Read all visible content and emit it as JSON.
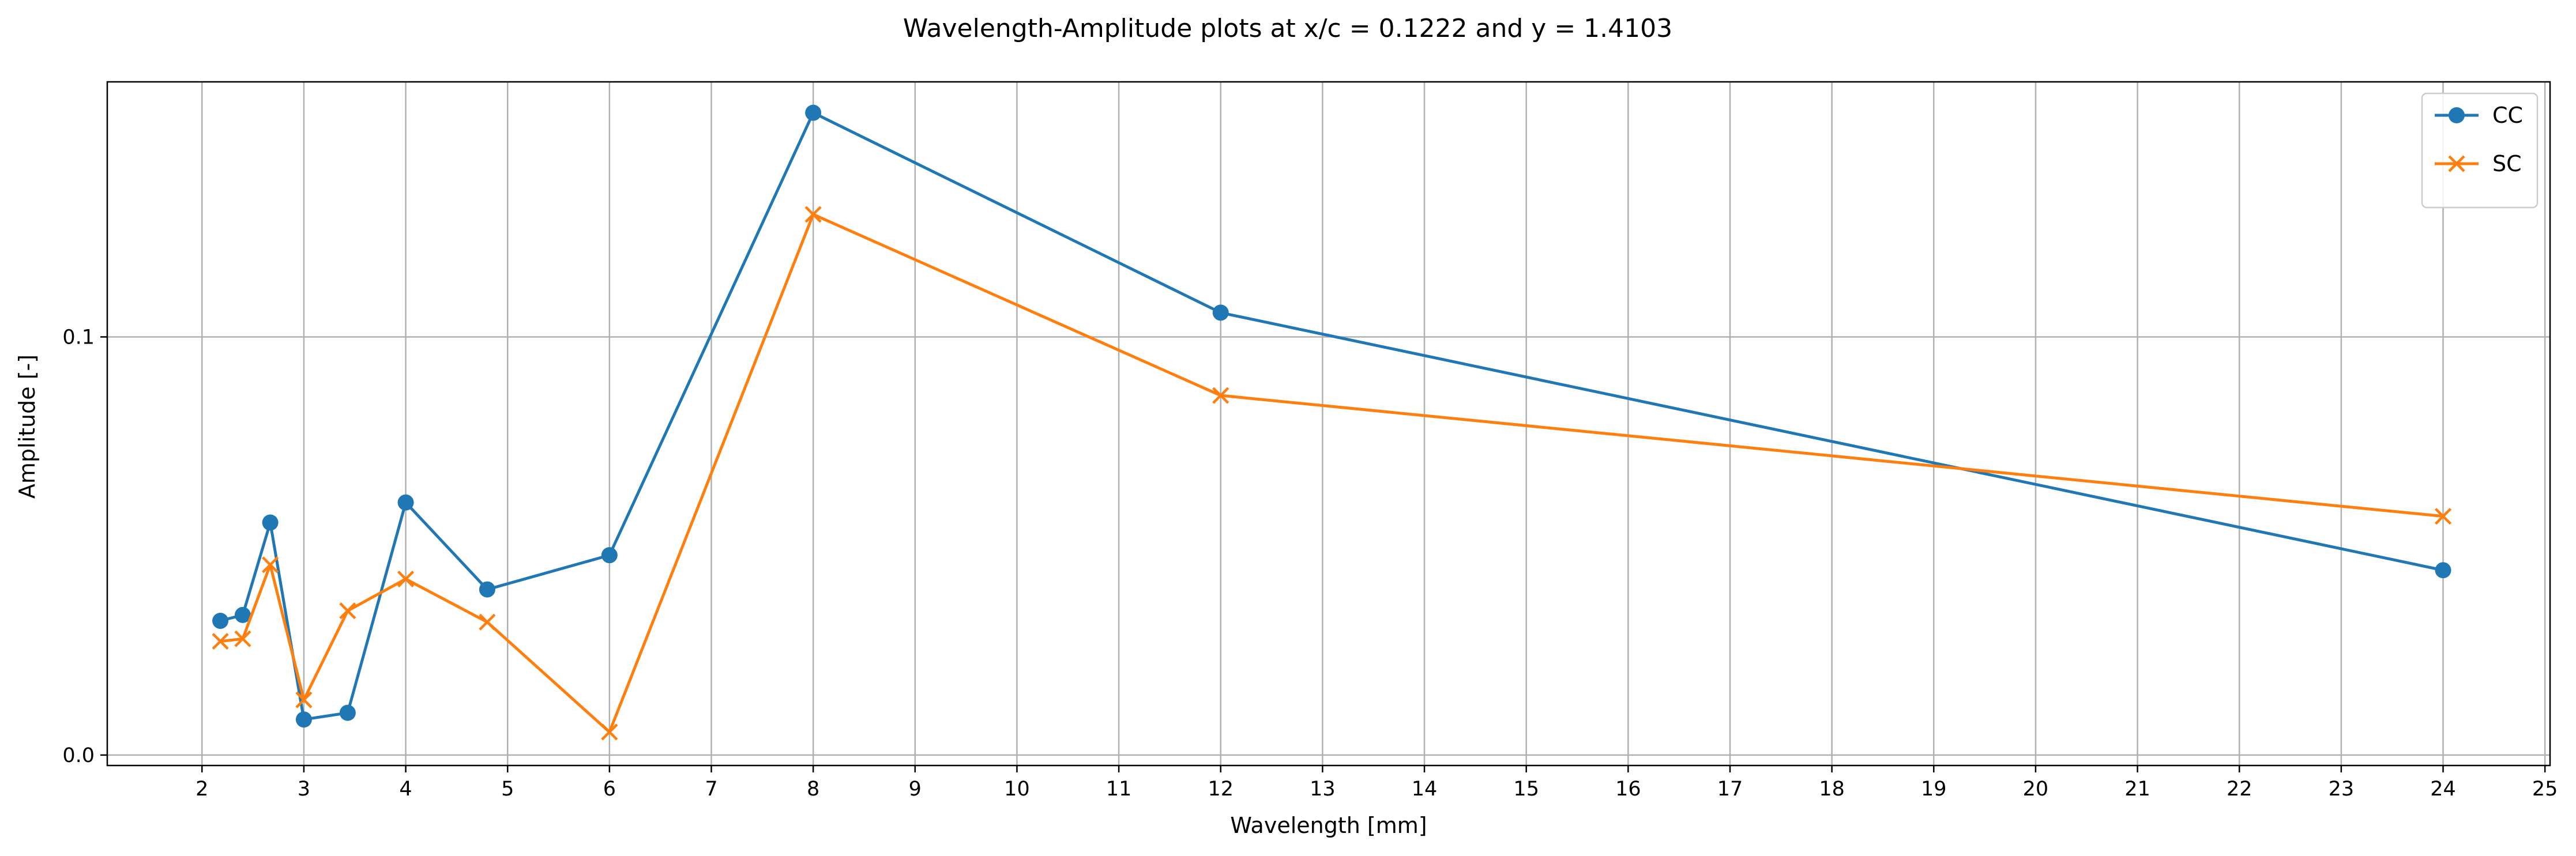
{
  "chart_data": {
    "type": "line",
    "title": "Wavelength-Amplitude plots at x/c = 0.1222 and y = 1.4103",
    "xlabel": "Wavelength [mm]",
    "ylabel": "Amplitude [-]",
    "xlim": [
      1.07,
      25.05
    ],
    "ylim": [
      -0.0025,
      0.161
    ],
    "x_ticks": [
      2,
      3,
      4,
      5,
      6,
      7,
      8,
      9,
      10,
      11,
      12,
      13,
      14,
      15,
      16,
      17,
      18,
      19,
      20,
      21,
      22,
      23,
      24,
      25
    ],
    "x_tick_labels": [
      "2",
      "3",
      "4",
      "5",
      "6",
      "7",
      "8",
      "9",
      "10",
      "11",
      "12",
      "13",
      "14",
      "15",
      "16",
      "17",
      "18",
      "19",
      "20",
      "21",
      "22",
      "23",
      "24",
      "25"
    ],
    "y_ticks": [
      0.0,
      0.1
    ],
    "y_tick_labels": [
      "0.0",
      "0.1"
    ],
    "grid": true,
    "legend_position": "top-right",
    "series": [
      {
        "name": "CC",
        "color": "#1f77b4",
        "marker": "circle",
        "x": [
          2.18,
          2.4,
          2.67,
          3.0,
          3.43,
          4.0,
          4.8,
          6.0,
          8.0,
          12.0,
          24.0
        ],
        "y": [
          0.0321,
          0.0335,
          0.0556,
          0.0085,
          0.0101,
          0.0604,
          0.0396,
          0.0478,
          0.1536,
          0.1058,
          0.0442
        ]
      },
      {
        "name": "SC",
        "color": "#ff7f0e",
        "marker": "x",
        "x": [
          2.18,
          2.4,
          2.67,
          3.0,
          3.43,
          4.0,
          4.8,
          6.0,
          8.0,
          12.0,
          24.0
        ],
        "y": [
          0.0272,
          0.0278,
          0.0455,
          0.0132,
          0.0345,
          0.0421,
          0.0318,
          0.0055,
          0.1293,
          0.086,
          0.0571
        ]
      }
    ]
  }
}
